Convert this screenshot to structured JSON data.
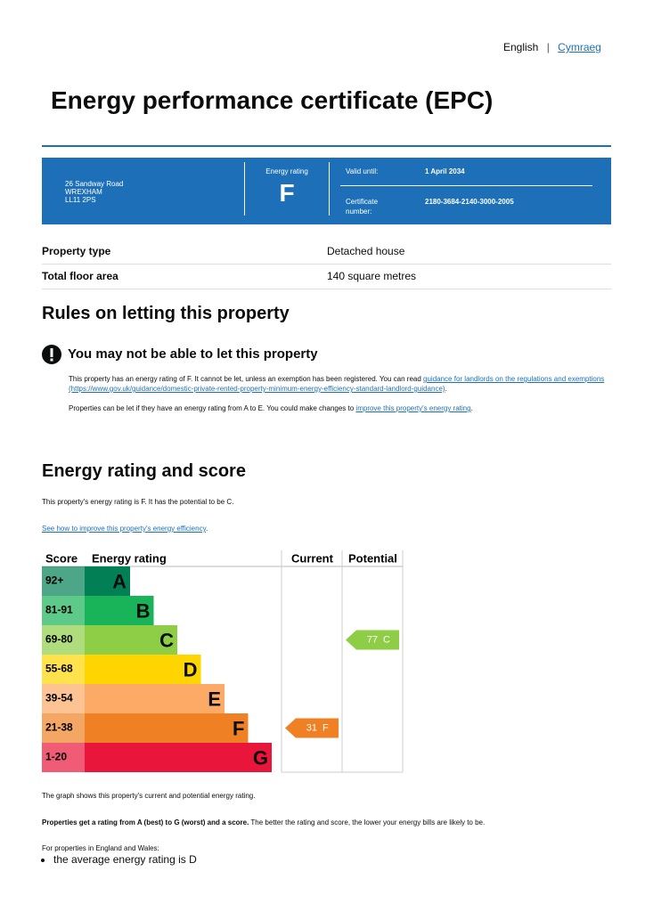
{
  "header": {
    "languages": [
      "English",
      "Cymraeg"
    ],
    "title": "Energy performance certificate (EPC)"
  },
  "summary": {
    "address": [
      "26 Sandway Road",
      "WREXHAM",
      "LL11 2PS"
    ],
    "rating_label": "Energy rating",
    "rating": "F",
    "valid_until_label": "Valid until:",
    "valid_until": "1 April 2034",
    "certificate_label": "Certificate number:",
    "certificate_number": "2180-3684-2140-3000-2005"
  },
  "property": [
    {
      "label": "Property type",
      "value": "Detached house"
    },
    {
      "label": "Total floor area",
      "value": "140 square metres"
    }
  ],
  "letting": {
    "heading": "Rules on letting this property",
    "warning": "You may not be able to let this property",
    "paragraph1": {
      "text": "This property has an energy rating of F. It cannot be let, unless an exemption has been registered. You can read ",
      "link": "guidance for landlords on the regulations and exemptions (https://www.gov.uk/guidance/domestic-private-rented-property-minimum-energy-efficiency-standard-landlord-guidance)",
      "end": "."
    },
    "paragraph2": {
      "text": "Properties can be let if they have an energy rating from A to E. You could make changes to ",
      "link": "improve this property's energy rating",
      "end": "."
    }
  },
  "energy": {
    "heading": "Energy rating and score",
    "summary": "This property's energy rating is F. It has the potential to be C.",
    "link": "See how to improve this property's energy efficiency",
    "link_end": ".",
    "columns": [
      "Score",
      "Energy rating",
      "Current",
      "Potential"
    ],
    "bands": [
      {
        "range": "92+",
        "letter": "A",
        "color": "#008054"
      },
      {
        "range": "81-91",
        "letter": "B",
        "color": "#19b459"
      },
      {
        "range": "69-80",
        "letter": "C",
        "color": "#8dce46"
      },
      {
        "range": "55-68",
        "letter": "D",
        "color": "#ffd500"
      },
      {
        "range": "39-54",
        "letter": "E",
        "color": "#fcaa65"
      },
      {
        "range": "21-38",
        "letter": "F",
        "color": "#ef8023"
      },
      {
        "range": "1-20",
        "letter": "G",
        "color": "#e9153b"
      }
    ],
    "current": {
      "score": 31,
      "letter": "F"
    },
    "potential": {
      "score": 77,
      "letter": "C"
    },
    "notes": [
      "The graph shows this property's current and potential energy rating."
    ],
    "bold_note": "Properties get a rating from A (best) to G (worst) and a score.",
    "bold_note_rest": " The better the rating and score, the lower your energy bills are likely to be.",
    "regional_intro": "For properties in England and Wales:",
    "bullets": [
      "the average energy rating is D"
    ]
  }
}
